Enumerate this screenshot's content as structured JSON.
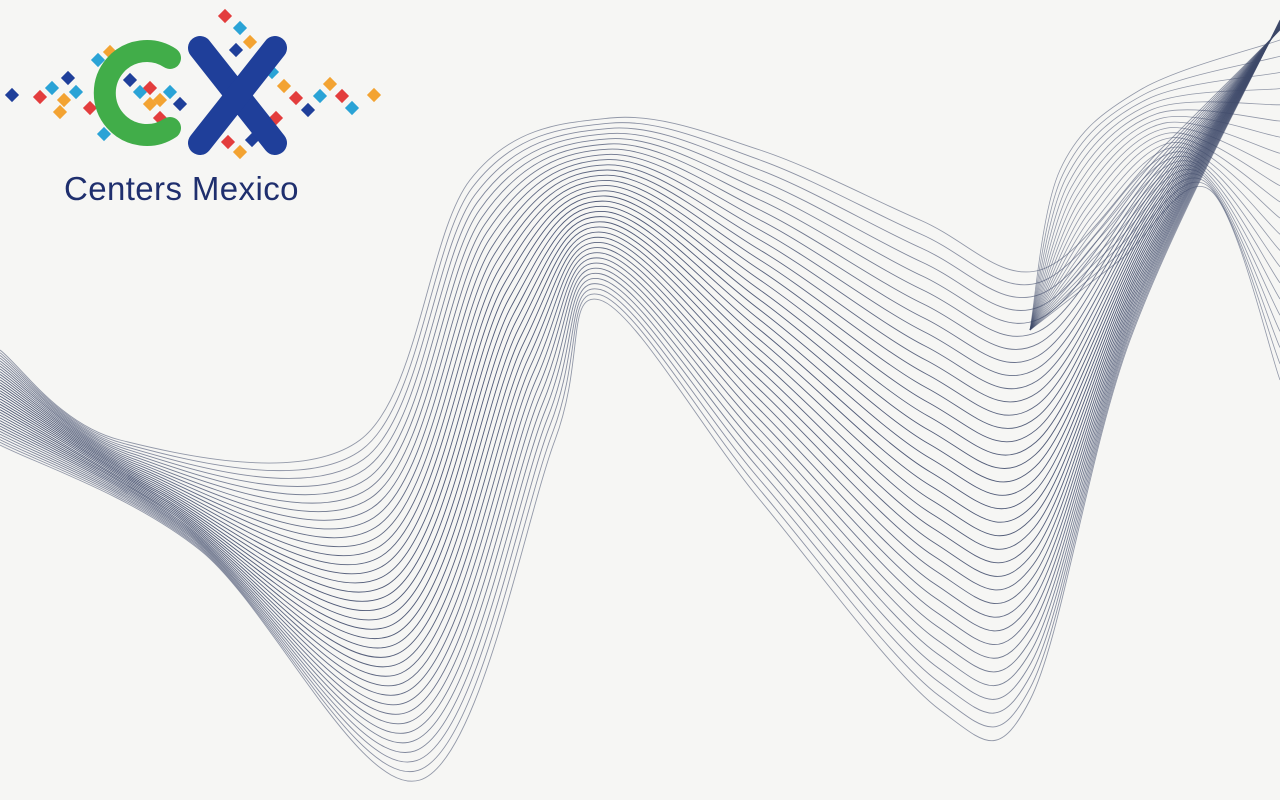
{
  "slide": {
    "background_color": "#f6f6f4",
    "wave_color": "#3f4a6a"
  },
  "logo": {
    "letters": "CX",
    "subtitle": "Centers Mexico",
    "colors": {
      "c_letter": "#41ad49",
      "x_letter": "#1f3f9a",
      "text": "#1f2f6e",
      "accent_red": "#e33d3d",
      "accent_blue": "#2aa3d6",
      "accent_orange": "#f3a332",
      "accent_navy": "#1f3f9a"
    }
  }
}
